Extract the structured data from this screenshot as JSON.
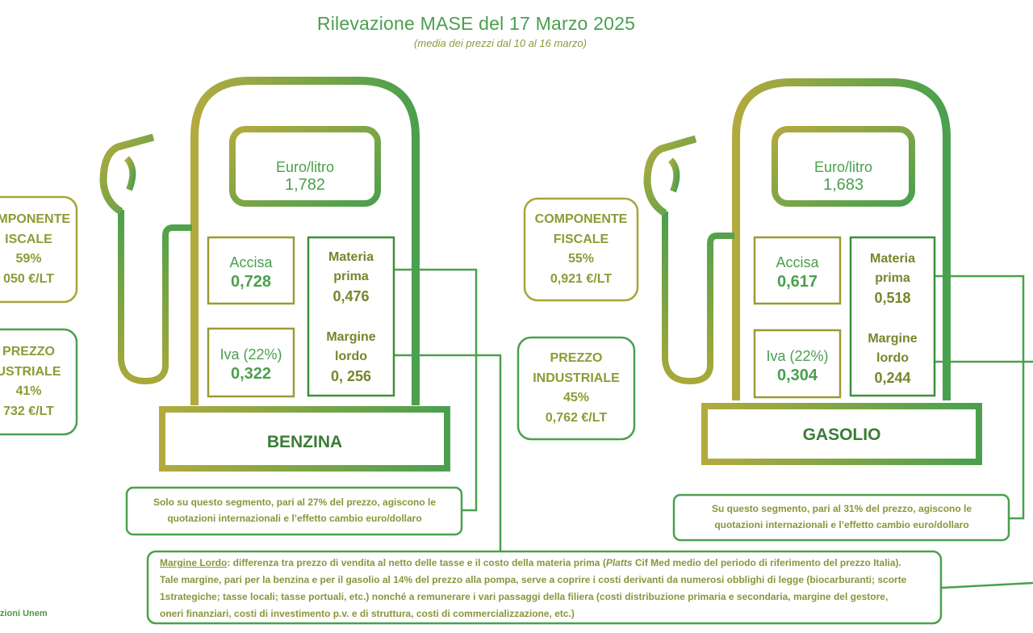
{
  "header": {
    "title": "Rilevazione MASE del 17 Marzo 2025",
    "subtitle": "(media dei prezzi dal 10 al 16 marzo)"
  },
  "benzina": {
    "name": "BENZINA",
    "euro_label": "Euro/litro",
    "euro_value": "1,782",
    "accisa_label": "Accisa",
    "accisa_value": "0,728",
    "iva_label": "Iva (22%)",
    "iva_value": "0,322",
    "materia_label_1": "Materia",
    "materia_label_2": "prima",
    "materia_value": "0,476",
    "margine_label_1": "Margine",
    "margine_label_2": "lordo",
    "margine_value": "0, 256",
    "fiscale_1": "OMPONENTE",
    "fiscale_2": "ISCALE",
    "fiscale_pct": "59%",
    "fiscale_val": "050 €/LT",
    "industriale_1": "PREZZO",
    "industriale_2": "USTRIALE",
    "industriale_pct": "41%",
    "industriale_val": "732 €/LT",
    "note_1": "Solo su questo segmento, pari al 27% del prezzo, agiscono le",
    "note_2": "quotazioni internazionali e l’effetto cambio euro/dollaro"
  },
  "gasolio": {
    "name": "GASOLIO",
    "euro_label": "Euro/litro",
    "euro_value": "1,683",
    "accisa_label": "Accisa",
    "accisa_value": "0,617",
    "iva_label": "Iva (22%)",
    "iva_value": "0,304",
    "materia_label_1": "Materia",
    "materia_label_2": "prima",
    "materia_value": "0,518",
    "margine_label_1": "Margine",
    "margine_label_2": "lordo",
    "margine_value": "0,244",
    "fiscale_1": "COMPONENTE",
    "fiscale_2": "FISCALE",
    "fiscale_pct": "55%",
    "fiscale_val": "0,921 €/LT",
    "industriale_1": "PREZZO",
    "industriale_2": "INDUSTRIALE",
    "industriale_pct": "45%",
    "industriale_val": "0,762 €/LT",
    "note_1": "Su questo segmento, pari al 31% del prezzo, agiscono le",
    "note_2": "quotazioni internazionali e l’effetto cambio euro/dollaro"
  },
  "footnote": {
    "term": "Margine Lordo",
    "line_1": ": differenza tra prezzo di vendita al netto delle tasse e il costo della materia prima (",
    "platts": "Platts",
    "line_1b": " Cif Med medio del periodo di riferimento del prezzo Italia).",
    "line_2": "Tale margine, pari per la benzina e per il gasolio al 14% del prezzo alla pompa, serve a coprire i costi derivanti da numerosi obblighi di legge (biocarburanti; scorte",
    "line_3": "1strategiche; tasse locali; tasse portuali, etc.) nonché a remunerare i vari passaggi della filiera (costi distribuzione primaria e secondaria, margine del gestore,",
    "line_4": "oneri finanziari, costi di investimento p.v. e di struttura, costi di commercializzazione, etc.)"
  },
  "source": "zioni Unem",
  "colors": {
    "olive": "#a8a83a",
    "green": "#4aa04e"
  }
}
